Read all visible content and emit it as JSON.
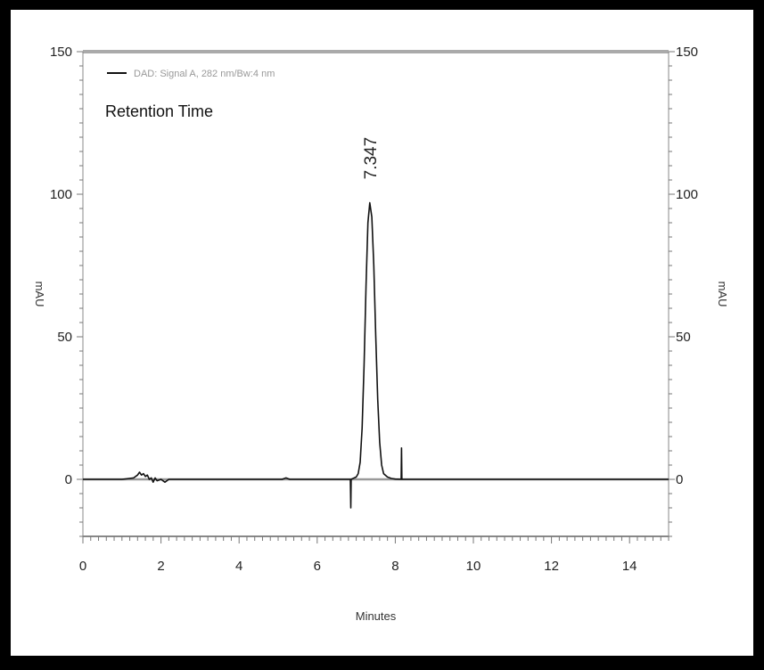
{
  "chart_data": {
    "type": "line",
    "title": "Retention Time",
    "legend": "DAD: Signal A, 282 nm/Bw:4 nm",
    "legend_position": "top-left",
    "xlabel": "Minutes",
    "ylabel_left": "mAU",
    "ylabel_right": "mAU",
    "xlim": [
      0,
      15
    ],
    "ylim": [
      -20,
      150
    ],
    "xticks": [
      0,
      2,
      4,
      6,
      8,
      10,
      12,
      14
    ],
    "yticks": [
      0,
      50,
      100,
      150
    ],
    "grid": false,
    "line_color": "#111111",
    "series": [
      {
        "name": "DAD: Signal A, 282 nm/Bw:4 nm",
        "x": [
          0,
          1.0,
          1.3,
          1.4,
          1.45,
          1.5,
          1.55,
          1.6,
          1.65,
          1.7,
          1.75,
          1.8,
          1.85,
          1.9,
          2.0,
          2.1,
          2.2,
          3.0,
          5.1,
          5.2,
          5.3,
          6.5,
          6.85,
          6.86,
          6.87,
          6.9,
          7.0,
          7.05,
          7.1,
          7.15,
          7.2,
          7.25,
          7.3,
          7.347,
          7.4,
          7.45,
          7.5,
          7.55,
          7.6,
          7.65,
          7.7,
          7.8,
          7.9,
          8.0,
          8.15,
          8.16,
          8.17,
          9.0,
          12.0,
          15.0
        ],
        "y": [
          0,
          0,
          0.5,
          1.5,
          2.5,
          1.5,
          2,
          1,
          1.5,
          0,
          0.5,
          -1,
          0.5,
          -0.5,
          0,
          -1,
          0,
          0,
          0,
          0.5,
          0,
          0,
          0,
          -10,
          0,
          0.2,
          0.8,
          2,
          6,
          18,
          40,
          68,
          90,
          97,
          92,
          75,
          50,
          28,
          13,
          5,
          2,
          0.8,
          0.3,
          0.1,
          0,
          11,
          0,
          0,
          0,
          0
        ]
      }
    ],
    "annotations": [
      {
        "text": "7.347",
        "x": 7.347,
        "y": 97
      }
    ]
  }
}
